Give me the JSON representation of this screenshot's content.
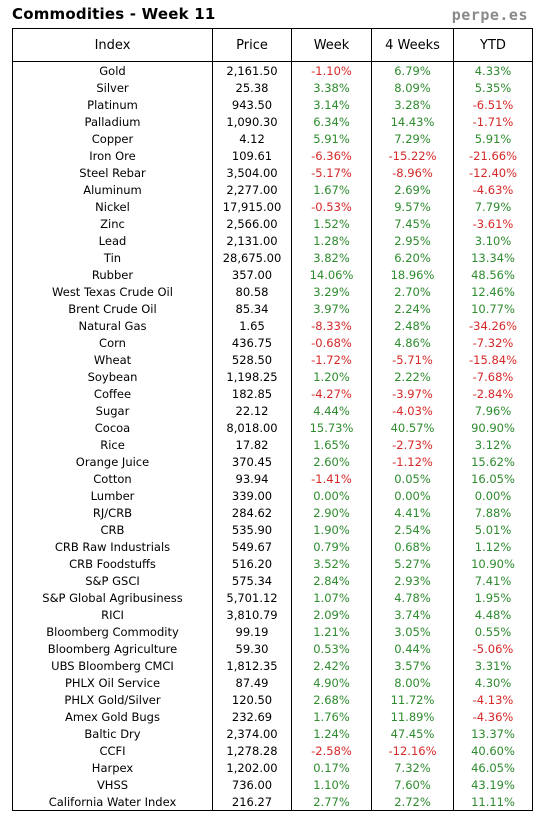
{
  "header": {
    "title": "Commodities - Week 11",
    "brand": "perpe.es"
  },
  "columns": [
    "Index",
    "Price",
    "Week",
    "4 Weeks",
    "YTD"
  ],
  "rows": [
    {
      "name": "Gold",
      "price": "2,161.50",
      "week": "-1.10%",
      "w4": "6.79%",
      "ytd": "4.33%"
    },
    {
      "name": "Silver",
      "price": "25.38",
      "week": "3.38%",
      "w4": "8.09%",
      "ytd": "5.35%"
    },
    {
      "name": "Platinum",
      "price": "943.50",
      "week": "3.14%",
      "w4": "3.28%",
      "ytd": "-6.51%"
    },
    {
      "name": "Palladium",
      "price": "1,090.30",
      "week": "6.34%",
      "w4": "14.43%",
      "ytd": "-1.71%"
    },
    {
      "name": "Copper",
      "price": "4.12",
      "week": "5.91%",
      "w4": "7.29%",
      "ytd": "5.91%"
    },
    {
      "name": "Iron Ore",
      "price": "109.61",
      "week": "-6.36%",
      "w4": "-15.22%",
      "ytd": "-21.66%"
    },
    {
      "name": "Steel Rebar",
      "price": "3,504.00",
      "week": "-5.17%",
      "w4": "-8.96%",
      "ytd": "-12.40%"
    },
    {
      "name": "Aluminum",
      "price": "2,277.00",
      "week": "1.67%",
      "w4": "2.69%",
      "ytd": "-4.63%"
    },
    {
      "name": "Nickel",
      "price": "17,915.00",
      "week": "-0.53%",
      "w4": "9.57%",
      "ytd": "7.79%"
    },
    {
      "name": "Zinc",
      "price": "2,566.00",
      "week": "1.52%",
      "w4": "7.45%",
      "ytd": "-3.61%"
    },
    {
      "name": "Lead",
      "price": "2,131.00",
      "week": "1.28%",
      "w4": "2.95%",
      "ytd": "3.10%"
    },
    {
      "name": "Tin",
      "price": "28,675.00",
      "week": "3.82%",
      "w4": "6.20%",
      "ytd": "13.34%"
    },
    {
      "name": "Rubber",
      "price": "357.00",
      "week": "14.06%",
      "w4": "18.96%",
      "ytd": "48.56%"
    },
    {
      "name": "West Texas Crude Oil",
      "price": "80.58",
      "week": "3.29%",
      "w4": "2.70%",
      "ytd": "12.46%"
    },
    {
      "name": "Brent Crude Oil",
      "price": "85.34",
      "week": "3.97%",
      "w4": "2.24%",
      "ytd": "10.77%"
    },
    {
      "name": "Natural Gas",
      "price": "1.65",
      "week": "-8.33%",
      "w4": "2.48%",
      "ytd": "-34.26%"
    },
    {
      "name": "Corn",
      "price": "436.75",
      "week": "-0.68%",
      "w4": "4.86%",
      "ytd": "-7.32%"
    },
    {
      "name": "Wheat",
      "price": "528.50",
      "week": "-1.72%",
      "w4": "-5.71%",
      "ytd": "-15.84%"
    },
    {
      "name": "Soybean",
      "price": "1,198.25",
      "week": "1.20%",
      "w4": "2.22%",
      "ytd": "-7.68%"
    },
    {
      "name": "Coffee",
      "price": "182.85",
      "week": "-4.27%",
      "w4": "-3.97%",
      "ytd": "-2.84%"
    },
    {
      "name": "Sugar",
      "price": "22.12",
      "week": "4.44%",
      "w4": "-4.03%",
      "ytd": "7.96%"
    },
    {
      "name": "Cocoa",
      "price": "8,018.00",
      "week": "15.73%",
      "w4": "40.57%",
      "ytd": "90.90%"
    },
    {
      "name": "Rice",
      "price": "17.82",
      "week": "1.65%",
      "w4": "-2.73%",
      "ytd": "3.12%"
    },
    {
      "name": "Orange Juice",
      "price": "370.45",
      "week": "2.60%",
      "w4": "-1.12%",
      "ytd": "15.62%"
    },
    {
      "name": "Cotton",
      "price": "93.94",
      "week": "-1.41%",
      "w4": "0.05%",
      "ytd": "16.05%"
    },
    {
      "name": "Lumber",
      "price": "339.00",
      "week": "0.00%",
      "w4": "0.00%",
      "ytd": "0.00%"
    },
    {
      "name": "RJ/CRB",
      "price": "284.62",
      "week": "2.90%",
      "w4": "4.41%",
      "ytd": "7.88%"
    },
    {
      "name": "CRB",
      "price": "535.90",
      "week": "1.90%",
      "w4": "2.54%",
      "ytd": "5.01%"
    },
    {
      "name": "CRB Raw Industrials",
      "price": "549.67",
      "week": "0.79%",
      "w4": "0.68%",
      "ytd": "1.12%"
    },
    {
      "name": "CRB Foodstuffs",
      "price": "516.20",
      "week": "3.52%",
      "w4": "5.27%",
      "ytd": "10.90%"
    },
    {
      "name": "S&P GSCI",
      "price": "575.34",
      "week": "2.84%",
      "w4": "2.93%",
      "ytd": "7.41%"
    },
    {
      "name": "S&P Global Agribusiness",
      "price": "5,701.12",
      "week": "1.07%",
      "w4": "4.78%",
      "ytd": "1.95%"
    },
    {
      "name": "RICI",
      "price": "3,810.79",
      "week": "2.09%",
      "w4": "3.74%",
      "ytd": "4.48%"
    },
    {
      "name": "Bloomberg Commodity",
      "price": "99.19",
      "week": "1.21%",
      "w4": "3.05%",
      "ytd": "0.55%"
    },
    {
      "name": "Bloomberg Agriculture",
      "price": "59.30",
      "week": "0.53%",
      "w4": "0.44%",
      "ytd": "-5.06%"
    },
    {
      "name": "UBS Bloomberg CMCI",
      "price": "1,812.35",
      "week": "2.42%",
      "w4": "3.57%",
      "ytd": "3.31%"
    },
    {
      "name": "PHLX Oil Service",
      "price": "87.49",
      "week": "4.90%",
      "w4": "8.00%",
      "ytd": "4.30%"
    },
    {
      "name": "PHLX Gold/Silver",
      "price": "120.50",
      "week": "2.68%",
      "w4": "11.72%",
      "ytd": "-4.13%"
    },
    {
      "name": "Amex Gold Bugs",
      "price": "232.69",
      "week": "1.76%",
      "w4": "11.89%",
      "ytd": "-4.36%"
    },
    {
      "name": "Baltic Dry",
      "price": "2,374.00",
      "week": "1.24%",
      "w4": "47.45%",
      "ytd": "13.37%"
    },
    {
      "name": "CCFI",
      "price": "1,278.28",
      "week": "-2.58%",
      "w4": "-12.16%",
      "ytd": "40.60%"
    },
    {
      "name": "Harpex",
      "price": "1,202.00",
      "week": "0.17%",
      "w4": "7.32%",
      "ytd": "46.05%"
    },
    {
      "name": "VHSS",
      "price": "736.00",
      "week": "1.10%",
      "w4": "7.60%",
      "ytd": "43.19%"
    },
    {
      "name": "California Water Index",
      "price": "216.27",
      "week": "2.77%",
      "w4": "2.72%",
      "ytd": "11.11%"
    }
  ],
  "colors": {
    "positive": "#2e8b2e",
    "negative": "#d62828"
  }
}
